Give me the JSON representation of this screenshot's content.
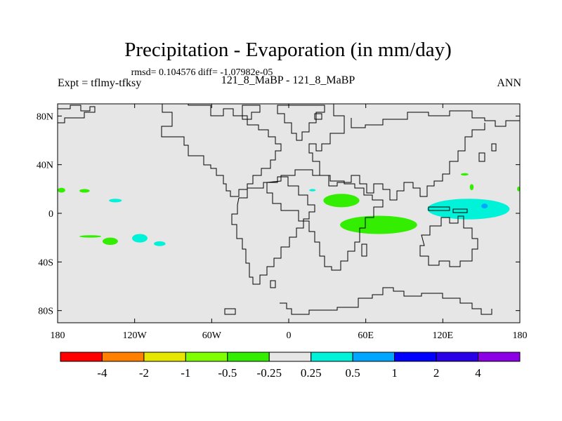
{
  "header": {
    "title": "Precipitation - Evaporation (in mm/day)",
    "stats": "rmsd= 0.104576 diff= -1.07982e-05",
    "experiment": "Expt = tflmy-tfksy",
    "case": "121_8_MaBP - 121_8_MaBP",
    "season": "ANN"
  },
  "chart_data": {
    "type": "heatmap",
    "title": "Precipitation - Evaporation (in mm/day)",
    "xlabel": "",
    "ylabel": "",
    "xlim": [
      -180,
      180
    ],
    "ylim": [
      -90,
      90
    ],
    "x_ticks": [
      {
        "value": -180,
        "label": "180"
      },
      {
        "value": -120,
        "label": "120W"
      },
      {
        "value": -60,
        "label": "60W"
      },
      {
        "value": 0,
        "label": "0"
      },
      {
        "value": 60,
        "label": "60E"
      },
      {
        "value": 120,
        "label": "120E"
      },
      {
        "value": 180,
        "label": "180"
      }
    ],
    "y_ticks": [
      {
        "value": 80,
        "label": "80N"
      },
      {
        "value": 40,
        "label": "40N"
      },
      {
        "value": 0,
        "label": "0"
      },
      {
        "value": -40,
        "label": "40S"
      },
      {
        "value": -80,
        "label": "80S"
      }
    ],
    "background_color": "#e6e6e6",
    "contour_levels": [
      "-4",
      "-2",
      "-1",
      "-0.5",
      "-0.25",
      "0.25",
      "0.5",
      "1",
      "2",
      "4"
    ],
    "colorbar_colors": [
      "#ff0000",
      "#ff8000",
      "#e6e600",
      "#80ff00",
      "#33ee00",
      "#e6e6e6",
      "#00f2d9",
      "#00a6ff",
      "#0000ff",
      "#2a00e6",
      "#8c00e6"
    ],
    "anomaly_regions": [
      {
        "name": "w-pacific-north",
        "level": "-0.5",
        "lon": [
          -181,
          -174
        ],
        "lat": [
          17,
          21
        ]
      },
      {
        "name": "c-pacific-north",
        "level": "-0.5",
        "lon": [
          -163,
          -155
        ],
        "lat": [
          17,
          20
        ]
      },
      {
        "name": "c-pacific-cyan",
        "level": "0.5",
        "lon": [
          -140,
          -130
        ],
        "lat": [
          9,
          12
        ]
      },
      {
        "name": "s-pacific-streak",
        "level": "-0.5",
        "lon": [
          -163,
          -146
        ],
        "lat": [
          -18,
          -20
        ]
      },
      {
        "name": "s-pacific-blob",
        "level": "-0.5",
        "lon": [
          -145,
          -133
        ],
        "lat": [
          -20,
          -26
        ]
      },
      {
        "name": "s-pacific-cyan-a",
        "level": "0.5",
        "lon": [
          -122,
          -110
        ],
        "lat": [
          -17,
          -24
        ]
      },
      {
        "name": "s-pacific-cyan-b",
        "level": "0.5",
        "lon": [
          -105,
          -96
        ],
        "lat": [
          -23,
          -27
        ]
      },
      {
        "name": "n-africa-green",
        "level": "-0.5",
        "lon": [
          27,
          55
        ],
        "lat": [
          5,
          16
        ]
      },
      {
        "name": "indian-ocean-green",
        "level": "-0.5",
        "lon": [
          40,
          100
        ],
        "lat": [
          -2,
          -17
        ]
      },
      {
        "name": "arabian-sea-cyan",
        "level": "0.5",
        "lon": [
          16,
          21
        ],
        "lat": [
          18,
          20
        ]
      },
      {
        "name": "w-pacific-cyan",
        "level": "0.5",
        "lon": [
          108,
          172
        ],
        "lat": [
          12,
          -5
        ]
      },
      {
        "name": "w-pacific-blue",
        "level": "1",
        "lon": [
          150,
          155
        ],
        "lat": [
          8,
          4
        ]
      },
      {
        "name": "e-asia-green-a",
        "level": "-0.5",
        "lon": [
          134,
          140
        ],
        "lat": [
          33,
          31
        ]
      },
      {
        "name": "e-asia-green-b",
        "level": "-0.5",
        "lon": [
          141,
          144
        ],
        "lat": [
          24,
          19
        ]
      },
      {
        "name": "dateline-green",
        "level": "-0.5",
        "lon": [
          178,
          181
        ],
        "lat": [
          22,
          18
        ]
      }
    ]
  }
}
